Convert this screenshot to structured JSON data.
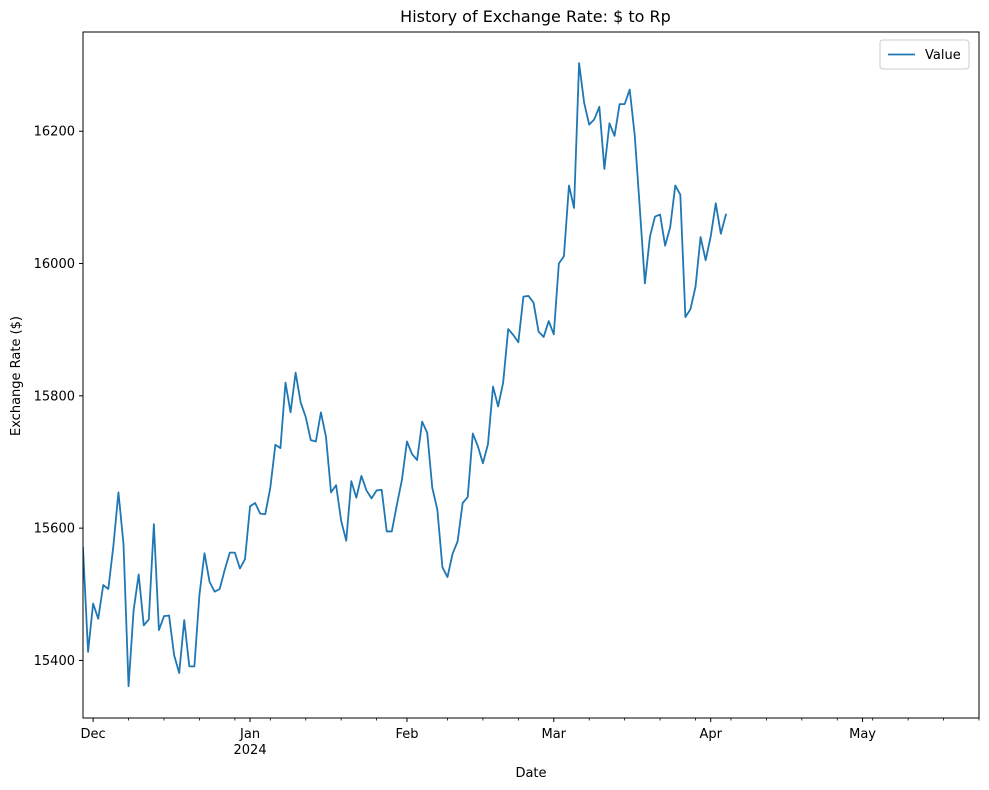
{
  "chart_data": {
    "type": "line",
    "title": "History of Exchange Rate: $ to Rp",
    "xlabel": "Date",
    "ylabel": "Exchange Rate ($)",
    "grid": false,
    "legend_position": "top-right",
    "ylim": [
      15313,
      16350
    ],
    "xlim": [
      "2023-11-29",
      "2024-05-24"
    ],
    "y_ticks": [
      15400,
      15600,
      15800,
      16000,
      16200
    ],
    "x_ticks": [
      {
        "date": "2023-12-01",
        "label": "Dec"
      },
      {
        "date": "2024-01-01",
        "label": "Jan",
        "sublabel": "2024"
      },
      {
        "date": "2024-02-01",
        "label": "Feb"
      },
      {
        "date": "2024-03-01",
        "label": "Mar"
      },
      {
        "date": "2024-04-01",
        "label": "Apr"
      },
      {
        "date": "2024-05-01",
        "label": "May"
      }
    ],
    "minor_tick_dates": [
      "2023-12-08",
      "2023-12-15",
      "2023-12-22",
      "2023-12-29",
      "2024-01-05",
      "2024-01-12",
      "2024-01-19",
      "2024-01-26",
      "2024-02-09",
      "2024-02-16",
      "2024-02-23",
      "2024-03-08",
      "2024-03-15",
      "2024-03-22",
      "2024-03-29",
      "2024-04-05",
      "2024-04-12",
      "2024-04-19",
      "2024-04-26",
      "2024-05-03",
      "2024-05-10",
      "2024-05-17",
      "2024-05-24"
    ],
    "series": [
      {
        "name": "Value",
        "color": "#1f77b4",
        "points": [
          [
            "2023-11-29",
            15570
          ],
          [
            "2023-11-30",
            15413
          ],
          [
            "2023-12-01",
            15486
          ],
          [
            "2023-12-02",
            15463
          ],
          [
            "2023-12-03",
            15514
          ],
          [
            "2023-12-04",
            15508
          ],
          [
            "2023-12-05",
            15573
          ],
          [
            "2023-12-06",
            15654
          ],
          [
            "2023-12-07",
            15576
          ],
          [
            "2023-12-08",
            15361
          ],
          [
            "2023-12-09",
            15476
          ],
          [
            "2023-12-10",
            15530
          ],
          [
            "2023-12-11",
            15453
          ],
          [
            "2023-12-12",
            15462
          ],
          [
            "2023-12-13",
            15606
          ],
          [
            "2023-12-14",
            15446
          ],
          [
            "2023-12-15",
            15467
          ],
          [
            "2023-12-16",
            15468
          ],
          [
            "2023-12-17",
            15408
          ],
          [
            "2023-12-18",
            15381
          ],
          [
            "2023-12-19",
            15461
          ],
          [
            "2023-12-20",
            15391
          ],
          [
            "2023-12-21",
            15391
          ],
          [
            "2023-12-22",
            15499
          ],
          [
            "2023-12-23",
            15562
          ],
          [
            "2023-12-24",
            15519
          ],
          [
            "2023-12-25",
            15504
          ],
          [
            "2023-12-26",
            15508
          ],
          [
            "2023-12-27",
            15537
          ],
          [
            "2023-12-28",
            15563
          ],
          [
            "2023-12-29",
            15563
          ],
          [
            "2023-12-30",
            15539
          ],
          [
            "2023-12-31",
            15553
          ],
          [
            "2024-01-01",
            15633
          ],
          [
            "2024-01-02",
            15638
          ],
          [
            "2024-01-03",
            15622
          ],
          [
            "2024-01-04",
            15621
          ],
          [
            "2024-01-05",
            15661
          ],
          [
            "2024-01-06",
            15726
          ],
          [
            "2024-01-07",
            15721
          ],
          [
            "2024-01-08",
            15820
          ],
          [
            "2024-01-09",
            15775
          ],
          [
            "2024-01-10",
            15835
          ],
          [
            "2024-01-11",
            15790
          ],
          [
            "2024-01-12",
            15768
          ],
          [
            "2024-01-13",
            15733
          ],
          [
            "2024-01-14",
            15731
          ],
          [
            "2024-01-15",
            15775
          ],
          [
            "2024-01-16",
            15738
          ],
          [
            "2024-01-17",
            15654
          ],
          [
            "2024-01-18",
            15665
          ],
          [
            "2024-01-19",
            15611
          ],
          [
            "2024-01-20",
            15581
          ],
          [
            "2024-01-21",
            15671
          ],
          [
            "2024-01-22",
            15646
          ],
          [
            "2024-01-23",
            15679
          ],
          [
            "2024-01-24",
            15657
          ],
          [
            "2024-01-25",
            15645
          ],
          [
            "2024-01-26",
            15657
          ],
          [
            "2024-01-27",
            15658
          ],
          [
            "2024-01-28",
            15595
          ],
          [
            "2024-01-29",
            15595
          ],
          [
            "2024-01-30",
            15635
          ],
          [
            "2024-01-31",
            15673
          ],
          [
            "2024-02-01",
            15731
          ],
          [
            "2024-02-02",
            15712
          ],
          [
            "2024-02-03",
            15703
          ],
          [
            "2024-02-04",
            15761
          ],
          [
            "2024-02-05",
            15744
          ],
          [
            "2024-02-06",
            15661
          ],
          [
            "2024-02-07",
            15628
          ],
          [
            "2024-02-08",
            15541
          ],
          [
            "2024-02-09",
            15526
          ],
          [
            "2024-02-10",
            15561
          ],
          [
            "2024-02-11",
            15580
          ],
          [
            "2024-02-12",
            15638
          ],
          [
            "2024-02-13",
            15647
          ],
          [
            "2024-02-14",
            15743
          ],
          [
            "2024-02-15",
            15724
          ],
          [
            "2024-02-16",
            15698
          ],
          [
            "2024-02-17",
            15727
          ],
          [
            "2024-02-18",
            15814
          ],
          [
            "2024-02-19",
            15784
          ],
          [
            "2024-02-20",
            15820
          ],
          [
            "2024-02-21",
            15901
          ],
          [
            "2024-02-22",
            15892
          ],
          [
            "2024-02-23",
            15881
          ],
          [
            "2024-02-24",
            15950
          ],
          [
            "2024-02-25",
            15951
          ],
          [
            "2024-02-26",
            15941
          ],
          [
            "2024-02-27",
            15897
          ],
          [
            "2024-02-28",
            15889
          ],
          [
            "2024-02-29",
            15913
          ],
          [
            "2024-03-01",
            15893
          ],
          [
            "2024-03-02",
            16000
          ],
          [
            "2024-03-03",
            16011
          ],
          [
            "2024-03-04",
            16118
          ],
          [
            "2024-03-05",
            16084
          ],
          [
            "2024-03-06",
            16303
          ],
          [
            "2024-03-07",
            16243
          ],
          [
            "2024-03-08",
            16210
          ],
          [
            "2024-03-09",
            16218
          ],
          [
            "2024-03-10",
            16237
          ],
          [
            "2024-03-11",
            16143
          ],
          [
            "2024-03-12",
            16212
          ],
          [
            "2024-03-13",
            16193
          ],
          [
            "2024-03-14",
            16241
          ],
          [
            "2024-03-15",
            16241
          ],
          [
            "2024-03-16",
            16263
          ],
          [
            "2024-03-17",
            16193
          ],
          [
            "2024-03-18",
            16083
          ],
          [
            "2024-03-19",
            15970
          ],
          [
            "2024-03-20",
            16041
          ],
          [
            "2024-03-21",
            16071
          ],
          [
            "2024-03-22",
            16074
          ],
          [
            "2024-03-23",
            16027
          ],
          [
            "2024-03-24",
            16055
          ],
          [
            "2024-03-25",
            16118
          ],
          [
            "2024-03-26",
            16104
          ],
          [
            "2024-03-27",
            15919
          ],
          [
            "2024-03-28",
            15931
          ],
          [
            "2024-03-29",
            15965
          ],
          [
            "2024-03-30",
            16040
          ],
          [
            "2024-03-31",
            16005
          ],
          [
            "2024-04-01",
            16041
          ],
          [
            "2024-04-02",
            16091
          ],
          [
            "2024-04-03",
            16045
          ],
          [
            "2024-04-04",
            16074
          ]
        ]
      }
    ]
  }
}
